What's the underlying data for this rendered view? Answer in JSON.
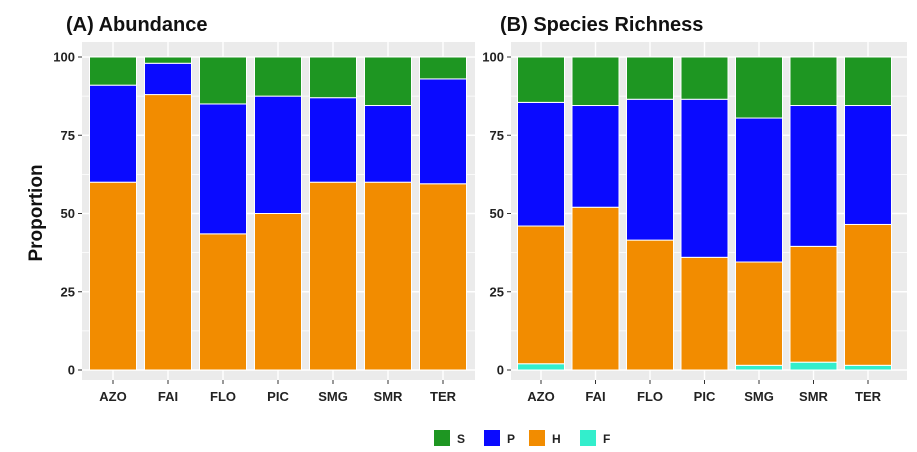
{
  "chart_data": [
    {
      "type": "bar",
      "stacked": true,
      "title": "(A) Abundance",
      "ylabel": "Proportion",
      "xlabel": "",
      "ylim": [
        0,
        100
      ],
      "yticks": [
        "0",
        "25",
        "50",
        "75",
        "100"
      ],
      "categories": [
        "AZO",
        "FAI",
        "FLO",
        "PIC",
        "SMG",
        "SMR",
        "TER"
      ],
      "series": [
        {
          "name": "F",
          "color": "#33eecc",
          "values": [
            0,
            0,
            0,
            0,
            0,
            0,
            0
          ]
        },
        {
          "name": "H",
          "color": "#f28c00",
          "values": [
            60,
            88,
            43.5,
            50,
            60,
            60,
            59.5
          ]
        },
        {
          "name": "P",
          "color": "#0a0aff",
          "values": [
            31,
            10,
            41.5,
            37.5,
            27,
            24.5,
            33.5
          ]
        },
        {
          "name": "S",
          "color": "#1e9622",
          "values": [
            9,
            2,
            15,
            12.5,
            13,
            15.5,
            7
          ]
        }
      ]
    },
    {
      "type": "bar",
      "stacked": true,
      "title": "(B) Species Richness",
      "ylabel": "",
      "xlabel": "",
      "ylim": [
        0,
        100
      ],
      "yticks": [
        "0",
        "25",
        "50",
        "75",
        "100"
      ],
      "categories": [
        "AZO",
        "FAI",
        "FLO",
        "PIC",
        "SMG",
        "SMR",
        "TER"
      ],
      "series": [
        {
          "name": "F",
          "color": "#33eecc",
          "values": [
            2,
            0,
            0,
            0,
            1.5,
            2.5,
            1.5
          ]
        },
        {
          "name": "H",
          "color": "#f28c00",
          "values": [
            44,
            52,
            41.5,
            36,
            33,
            37,
            45
          ]
        },
        {
          "name": "P",
          "color": "#0a0aff",
          "values": [
            39.5,
            32.5,
            45,
            50.5,
            46,
            45,
            38
          ]
        },
        {
          "name": "S",
          "color": "#1e9622",
          "values": [
            14.5,
            15.5,
            13.5,
            13.5,
            19.5,
            15.5,
            15.5
          ]
        }
      ]
    }
  ],
  "legend": {
    "position": "bottom",
    "items": [
      {
        "label": "S",
        "color": "#1e9622"
      },
      {
        "label": "P",
        "color": "#0a0aff"
      },
      {
        "label": "H",
        "color": "#f28c00"
      },
      {
        "label": "F",
        "color": "#33eecc"
      }
    ]
  },
  "colors": {
    "panel_bg": "#ebebeb",
    "grid": "#ffffff",
    "bar_edge": "#ffffff"
  }
}
